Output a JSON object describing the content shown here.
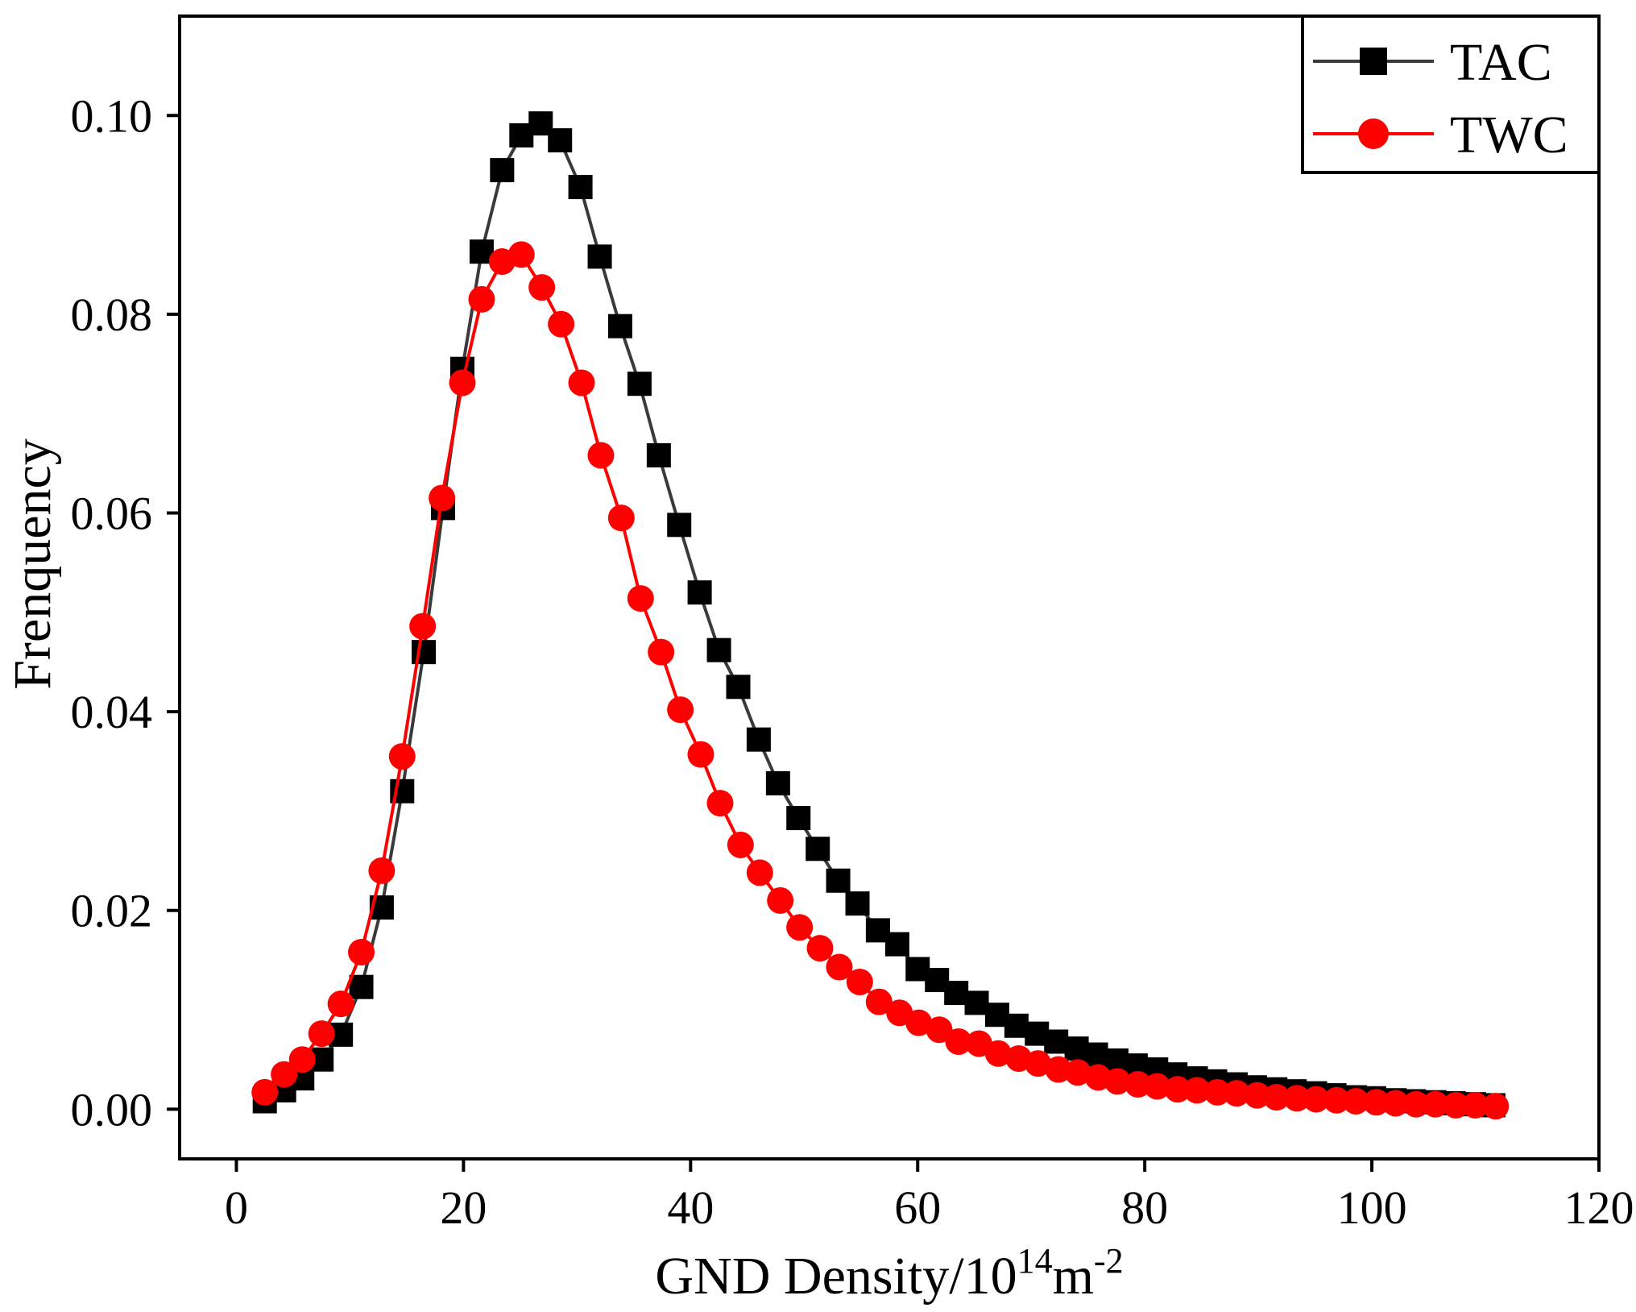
{
  "chart_data": {
    "type": "line",
    "title": "",
    "xlabel": "GND Density/10",
    "xlabel_exponent": "14",
    "xlabel_unit": "m",
    "xlabel_unit_exponent": "-2",
    "ylabel": "Frenquency",
    "xlim": [
      -5,
      120
    ],
    "ylim": [
      -0.005,
      0.11
    ],
    "xticks": [
      "0",
      "20",
      "40",
      "60",
      "80",
      "100",
      "120"
    ],
    "yticks": [
      "0.00",
      "0.02",
      "0.04",
      "0.06",
      "0.08",
      "0.10"
    ],
    "legend_position": "top-right",
    "grid": false,
    "series": [
      {
        "name": "TAC",
        "color": "#000000",
        "line_color": "#3a3a3a",
        "marker": "square",
        "points": [
          [
            2.5,
            0.0008
          ],
          [
            4.2,
            0.0019
          ],
          [
            5.8,
            0.0031
          ],
          [
            7.5,
            0.005
          ],
          [
            9.2,
            0.0075
          ],
          [
            11.0,
            0.0123
          ],
          [
            12.8,
            0.0203
          ],
          [
            14.6,
            0.032
          ],
          [
            16.5,
            0.046
          ],
          [
            18.2,
            0.0605
          ],
          [
            19.9,
            0.0745
          ],
          [
            21.6,
            0.0863
          ],
          [
            23.4,
            0.0945
          ],
          [
            25.1,
            0.098
          ],
          [
            26.8,
            0.0992
          ],
          [
            28.5,
            0.0975
          ],
          [
            30.3,
            0.0928
          ],
          [
            32.0,
            0.0858
          ],
          [
            33.8,
            0.0788
          ],
          [
            35.5,
            0.073
          ],
          [
            37.2,
            0.0658
          ],
          [
            39.0,
            0.0588
          ],
          [
            40.8,
            0.052
          ],
          [
            42.5,
            0.0462
          ],
          [
            44.2,
            0.0425
          ],
          [
            46.0,
            0.0372
          ],
          [
            47.7,
            0.0328
          ],
          [
            49.5,
            0.0293
          ],
          [
            51.2,
            0.0262
          ],
          [
            53.0,
            0.023
          ],
          [
            54.7,
            0.0207
          ],
          [
            56.5,
            0.018
          ],
          [
            58.2,
            0.0166
          ],
          [
            60.0,
            0.0141
          ],
          [
            61.7,
            0.013
          ],
          [
            63.4,
            0.0117
          ],
          [
            65.2,
            0.0107
          ],
          [
            67.0,
            0.0095
          ],
          [
            68.7,
            0.0084
          ],
          [
            70.5,
            0.0076
          ],
          [
            72.2,
            0.0068
          ],
          [
            74.0,
            0.0061
          ],
          [
            75.7,
            0.0055
          ],
          [
            77.5,
            0.0049
          ],
          [
            79.2,
            0.0044
          ],
          [
            81.0,
            0.004
          ],
          [
            82.7,
            0.0035
          ],
          [
            84.5,
            0.0031
          ],
          [
            86.2,
            0.0028
          ],
          [
            88.0,
            0.0025
          ],
          [
            89.7,
            0.0022
          ],
          [
            91.5,
            0.002
          ],
          [
            93.2,
            0.0018
          ],
          [
            95.0,
            0.0016
          ],
          [
            96.7,
            0.0014
          ],
          [
            98.5,
            0.0012
          ],
          [
            100.2,
            0.0011
          ],
          [
            102.0,
            0.0009
          ],
          [
            103.7,
            0.0008
          ],
          [
            105.5,
            0.0007
          ],
          [
            107.2,
            0.0006
          ],
          [
            109.0,
            0.0005
          ],
          [
            110.7,
            0.0004
          ]
        ]
      },
      {
        "name": "TWC",
        "color": "#ff0000",
        "line_color": "#ff0000",
        "marker": "circle",
        "points": [
          [
            2.5,
            0.0017
          ],
          [
            4.2,
            0.0035
          ],
          [
            5.8,
            0.005
          ],
          [
            7.5,
            0.0076
          ],
          [
            9.2,
            0.0106
          ],
          [
            11.0,
            0.0158
          ],
          [
            12.8,
            0.024
          ],
          [
            14.6,
            0.0355
          ],
          [
            16.4,
            0.0486
          ],
          [
            18.1,
            0.0615
          ],
          [
            19.9,
            0.0731
          ],
          [
            21.6,
            0.0815
          ],
          [
            23.4,
            0.0853
          ],
          [
            25.1,
            0.086
          ],
          [
            26.9,
            0.0827
          ],
          [
            28.6,
            0.079
          ],
          [
            30.4,
            0.0731
          ],
          [
            32.1,
            0.0658
          ],
          [
            33.9,
            0.0595
          ],
          [
            35.6,
            0.0514
          ],
          [
            37.4,
            0.046
          ],
          [
            39.1,
            0.0402
          ],
          [
            40.9,
            0.0357
          ],
          [
            42.6,
            0.0308
          ],
          [
            44.4,
            0.0266
          ],
          [
            46.1,
            0.0238
          ],
          [
            47.9,
            0.021
          ],
          [
            49.6,
            0.0183
          ],
          [
            51.4,
            0.0162
          ],
          [
            53.1,
            0.0143
          ],
          [
            54.9,
            0.0128
          ],
          [
            56.6,
            0.0108
          ],
          [
            58.4,
            0.0097
          ],
          [
            60.1,
            0.0087
          ],
          [
            61.9,
            0.008
          ],
          [
            63.6,
            0.0068
          ],
          [
            65.4,
            0.0066
          ],
          [
            67.1,
            0.0056
          ],
          [
            68.9,
            0.0051
          ],
          [
            70.6,
            0.0046
          ],
          [
            72.4,
            0.004
          ],
          [
            74.1,
            0.0037
          ],
          [
            75.9,
            0.0032
          ],
          [
            77.6,
            0.0028
          ],
          [
            79.4,
            0.0025
          ],
          [
            81.1,
            0.0023
          ],
          [
            82.9,
            0.002
          ],
          [
            84.6,
            0.0019
          ],
          [
            86.4,
            0.0017
          ],
          [
            88.1,
            0.0016
          ],
          [
            89.9,
            0.0014
          ],
          [
            91.6,
            0.0012
          ],
          [
            93.4,
            0.0011
          ],
          [
            95.1,
            0.001
          ],
          [
            96.9,
            0.0009
          ],
          [
            98.6,
            0.0008
          ],
          [
            100.4,
            0.0007
          ],
          [
            102.1,
            0.0006
          ],
          [
            103.9,
            0.0005
          ],
          [
            105.6,
            0.0005
          ],
          [
            107.4,
            0.0004
          ],
          [
            109.1,
            0.0004
          ],
          [
            110.9,
            0.0003
          ]
        ]
      }
    ]
  }
}
